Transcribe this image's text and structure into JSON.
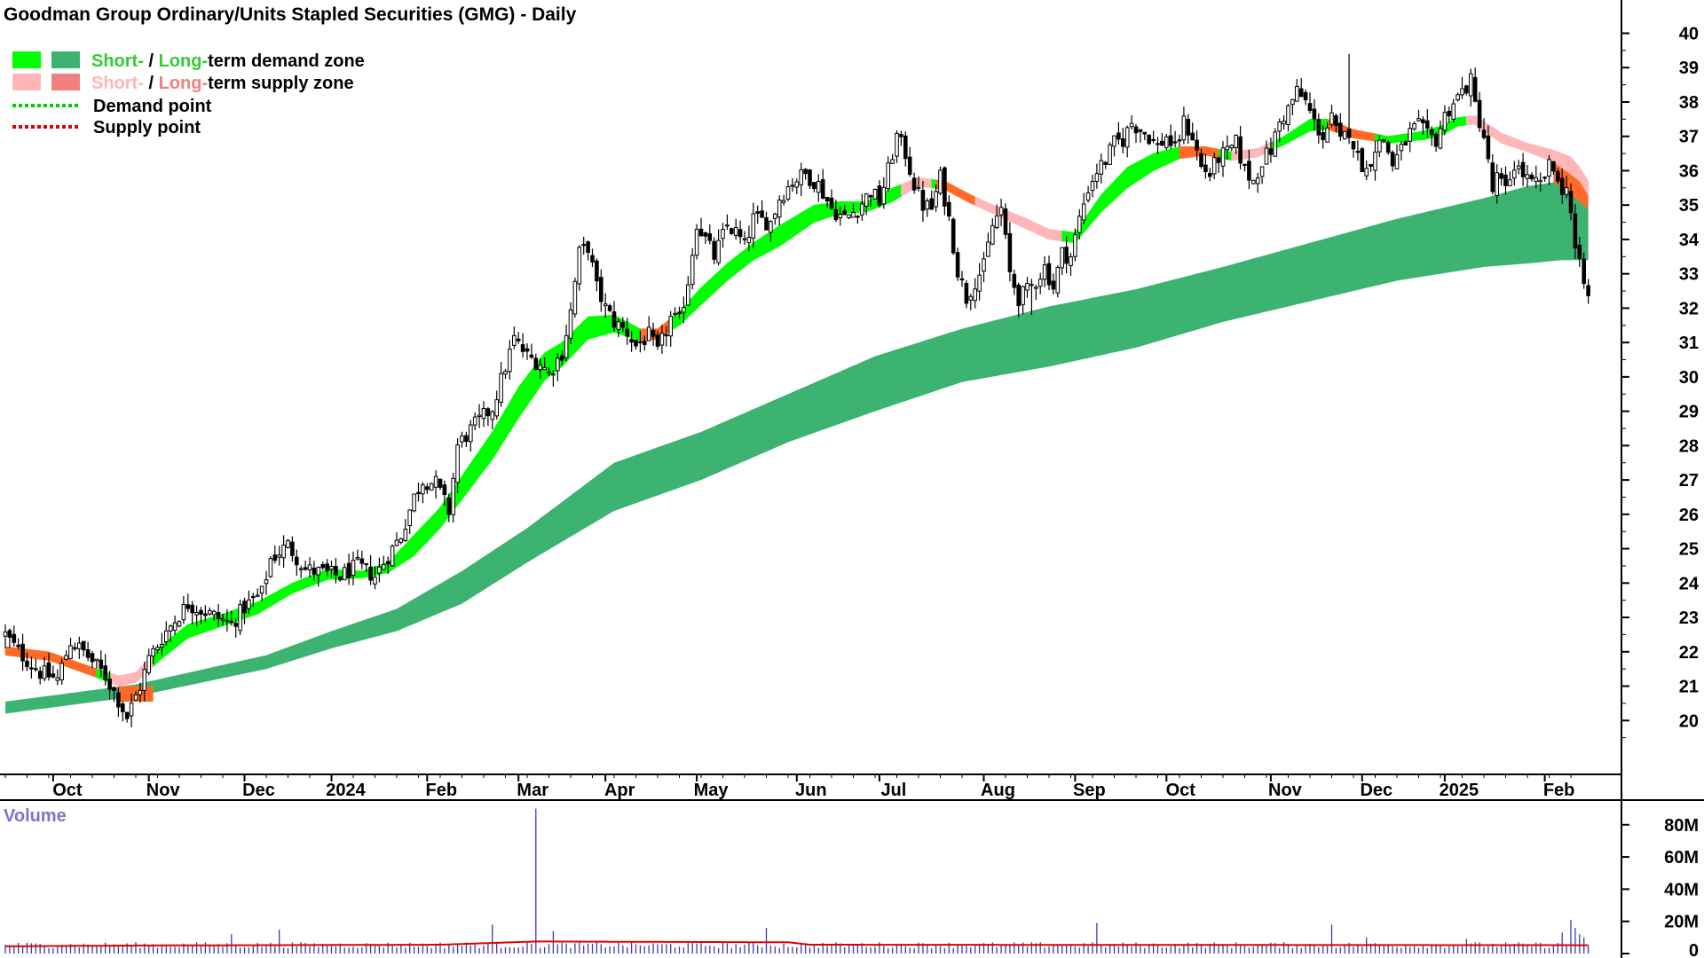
{
  "chart_data": {
    "type": "candlestick",
    "title": "Goodman Group Ordinary/Units Stapled Securities (GMG) - Daily",
    "legend": {
      "demand_zone": {
        "short": "Short-",
        "sep": " / ",
        "long": "Long-",
        "suffix": "term demand zone"
      },
      "supply_zone": {
        "short": "Short-",
        "sep": " / ",
        "long": "Long-",
        "suffix": "term supply zone"
      },
      "demand_point": "Demand point",
      "supply_point": "Supply point"
    },
    "legend_placement": "top-left",
    "price_axis": {
      "ylim": [
        19,
        40.4
      ],
      "ticks": [
        "20",
        "21",
        "22",
        "23",
        "24",
        "25",
        "26",
        "27",
        "28",
        "29",
        "30",
        "31",
        "32",
        "33",
        "34",
        "35",
        "36",
        "37",
        "38",
        "39",
        "40"
      ]
    },
    "x_labels": [
      {
        "label": "Oct",
        "pos": 11
      },
      {
        "label": "Nov",
        "pos": 33
      },
      {
        "label": "Dec",
        "pos": 55
      },
      {
        "label": "2024",
        "pos": 75
      },
      {
        "label": "Feb",
        "pos": 97
      },
      {
        "label": "Mar",
        "pos": 118
      },
      {
        "label": "Apr",
        "pos": 138
      },
      {
        "label": "May",
        "pos": 159
      },
      {
        "label": "Jun",
        "pos": 182
      },
      {
        "label": "Jul",
        "pos": 201
      },
      {
        "label": "Aug",
        "pos": 225
      },
      {
        "label": "Sep",
        "pos": 246
      },
      {
        "label": "Oct",
        "pos": 267
      },
      {
        "label": "Nov",
        "pos": 291
      },
      {
        "label": "Dec",
        "pos": 312
      },
      {
        "label": "2025",
        "pos": 331
      },
      {
        "label": "Feb",
        "pos": 354
      }
    ],
    "close_keys": [
      [
        0,
        22.5
      ],
      [
        3,
        22.0
      ],
      [
        8,
        21.4
      ],
      [
        12,
        21.2
      ],
      [
        15,
        22.3
      ],
      [
        18,
        22.0
      ],
      [
        23,
        21.3
      ],
      [
        26,
        20.6
      ],
      [
        28,
        20.1
      ],
      [
        31,
        21.0
      ],
      [
        33,
        21.8
      ],
      [
        37,
        22.6
      ],
      [
        42,
        23.4
      ],
      [
        47,
        23.1
      ],
      [
        52,
        22.8
      ],
      [
        55,
        23.3
      ],
      [
        59,
        23.7
      ],
      [
        61,
        24.7
      ],
      [
        65,
        25.1
      ],
      [
        69,
        24.4
      ],
      [
        73,
        24.3
      ],
      [
        77,
        24.2
      ],
      [
        81,
        24.5
      ],
      [
        85,
        24.2
      ],
      [
        88,
        24.8
      ],
      [
        91,
        25.4
      ],
      [
        94,
        26.5
      ],
      [
        96,
        27.0
      ],
      [
        99,
        26.9
      ],
      [
        102,
        26.1
      ],
      [
        104,
        28.0
      ],
      [
        108,
        28.6
      ],
      [
        112,
        29.1
      ],
      [
        115,
        30.3
      ],
      [
        117,
        31.1
      ],
      [
        120,
        30.6
      ],
      [
        123,
        30.4
      ],
      [
        125,
        30.1
      ],
      [
        128,
        30.7
      ],
      [
        130,
        31.9
      ],
      [
        132,
        33.6
      ],
      [
        134,
        33.8
      ],
      [
        136,
        32.6
      ],
      [
        138,
        32.0
      ],
      [
        140,
        31.6
      ],
      [
        143,
        31.3
      ],
      [
        145,
        30.9
      ],
      [
        148,
        31.2
      ],
      [
        150,
        30.7
      ],
      [
        153,
        31.7
      ],
      [
        155,
        31.6
      ],
      [
        157,
        32.8
      ],
      [
        159,
        34.5
      ],
      [
        161,
        34.0
      ],
      [
        163,
        33.5
      ],
      [
        166,
        34.4
      ],
      [
        168,
        34.2
      ],
      [
        170,
        33.8
      ],
      [
        172,
        34.6
      ],
      [
        176,
        34.5
      ],
      [
        178,
        35.2
      ],
      [
        181,
        35.7
      ],
      [
        184,
        35.9
      ],
      [
        187,
        35.6
      ],
      [
        190,
        34.9
      ],
      [
        193,
        34.6
      ],
      [
        196,
        34.9
      ],
      [
        199,
        35.4
      ],
      [
        201,
        35.1
      ],
      [
        203,
        36.0
      ],
      [
        205,
        37.0
      ],
      [
        207,
        36.5
      ],
      [
        209,
        35.6
      ],
      [
        211,
        35.0
      ],
      [
        213,
        34.9
      ],
      [
        215,
        35.8
      ],
      [
        217,
        34.6
      ],
      [
        219,
        33.1
      ],
      [
        221,
        32.3
      ],
      [
        223,
        32.8
      ],
      [
        225,
        33.2
      ],
      [
        227,
        34.4
      ],
      [
        229,
        34.9
      ],
      [
        231,
        33.0
      ],
      [
        233,
        32.3
      ],
      [
        235,
        32.5
      ],
      [
        237,
        32.8
      ],
      [
        239,
        33.2
      ],
      [
        241,
        32.6
      ],
      [
        243,
        33.6
      ],
      [
        245,
        33.5
      ],
      [
        247,
        34.6
      ],
      [
        249,
        35.5
      ],
      [
        251,
        36.0
      ],
      [
        253,
        36.3
      ],
      [
        255,
        36.8
      ],
      [
        257,
        36.9
      ],
      [
        259,
        37.4
      ],
      [
        261,
        37.2
      ],
      [
        263,
        37.0
      ],
      [
        265,
        36.7
      ],
      [
        267,
        37.0
      ],
      [
        269,
        36.6
      ],
      [
        271,
        37.4
      ],
      [
        273,
        37.0
      ],
      [
        275,
        36.1
      ],
      [
        277,
        35.9
      ],
      [
        279,
        36.4
      ],
      [
        281,
        36.5
      ],
      [
        283,
        36.8
      ],
      [
        285,
        36.0
      ],
      [
        287,
        35.7
      ],
      [
        289,
        36.3
      ],
      [
        291,
        36.6
      ],
      [
        293,
        37.4
      ],
      [
        295,
        37.8
      ],
      [
        297,
        38.3
      ],
      [
        299,
        38.0
      ],
      [
        301,
        37.4
      ],
      [
        303,
        37.0
      ],
      [
        305,
        37.5
      ],
      [
        307,
        36.8
      ],
      [
        309,
        37.2
      ],
      [
        311,
        36.4
      ],
      [
        313,
        36.0
      ],
      [
        315,
        36.7
      ],
      [
        317,
        36.9
      ],
      [
        319,
        36.2
      ],
      [
        321,
        36.6
      ],
      [
        323,
        37.1
      ],
      [
        325,
        37.3
      ],
      [
        327,
        37.0
      ],
      [
        329,
        36.9
      ],
      [
        331,
        37.6
      ],
      [
        333,
        38.0
      ],
      [
        335,
        38.3
      ],
      [
        337,
        38.6
      ],
      [
        338,
        37.9
      ],
      [
        340,
        37.0
      ],
      [
        342,
        35.4
      ],
      [
        343,
        35.8
      ],
      [
        345,
        35.4
      ],
      [
        347,
        36.2
      ],
      [
        349,
        35.9
      ],
      [
        351,
        35.6
      ],
      [
        353,
        35.6
      ],
      [
        355,
        36.1
      ],
      [
        357,
        35.9
      ],
      [
        358,
        35.2
      ],
      [
        359,
        35.7
      ],
      [
        360,
        34.8
      ],
      [
        361,
        33.7
      ],
      [
        362,
        33.2
      ],
      [
        363,
        32.7
      ],
      [
        364,
        32.3
      ]
    ],
    "candles_count": 365,
    "spikes": [
      {
        "i": 309,
        "high": 39.4
      },
      {
        "i": 221,
        "low": 32.0
      },
      {
        "i": 236,
        "low": 31.8
      },
      {
        "i": 29,
        "low": 19.8
      }
    ],
    "lt_zone_keys": [
      [
        0,
        20.2,
        20.55
      ],
      [
        30,
        20.7,
        21.05
      ],
      [
        60,
        21.5,
        21.9
      ],
      [
        75,
        22.1,
        22.6
      ],
      [
        90,
        22.6,
        23.25
      ],
      [
        105,
        23.4,
        24.35
      ],
      [
        120,
        24.6,
        25.6
      ],
      [
        140,
        26.1,
        27.5
      ],
      [
        160,
        27.0,
        28.4
      ],
      [
        180,
        28.1,
        29.5
      ],
      [
        200,
        29.0,
        30.6
      ],
      [
        220,
        29.85,
        31.4
      ],
      [
        240,
        30.3,
        32.05
      ],
      [
        260,
        30.85,
        32.55
      ],
      [
        280,
        31.6,
        33.2
      ],
      [
        300,
        32.2,
        33.9
      ],
      [
        320,
        32.8,
        34.6
      ],
      [
        340,
        33.2,
        35.2
      ],
      [
        350,
        33.3,
        35.55
      ],
      [
        358,
        33.4,
        35.7
      ],
      [
        364,
        33.4,
        35.7
      ]
    ],
    "st_band_keys": [
      [
        0,
        21.9,
        22.15
      ],
      [
        10,
        21.75,
        22.0
      ],
      [
        20,
        21.3,
        21.55
      ],
      [
        26,
        21.0,
        21.3
      ],
      [
        30,
        21.1,
        21.4
      ],
      [
        36,
        21.8,
        22.2
      ],
      [
        42,
        22.4,
        22.8
      ],
      [
        50,
        22.75,
        23.1
      ],
      [
        58,
        23.1,
        23.45
      ],
      [
        66,
        23.7,
        24.0
      ],
      [
        74,
        24.1,
        24.4
      ],
      [
        82,
        24.15,
        24.35
      ],
      [
        88,
        24.3,
        24.6
      ],
      [
        94,
        24.8,
        25.4
      ],
      [
        100,
        25.6,
        26.2
      ],
      [
        106,
        26.6,
        27.3
      ],
      [
        112,
        27.6,
        28.4
      ],
      [
        118,
        28.8,
        29.7
      ],
      [
        124,
        29.9,
        30.7
      ],
      [
        128,
        30.3,
        31.0
      ],
      [
        134,
        31.1,
        31.75
      ],
      [
        140,
        31.3,
        31.8
      ],
      [
        146,
        31.05,
        31.4
      ],
      [
        150,
        31.1,
        31.4
      ],
      [
        155,
        31.5,
        31.9
      ],
      [
        160,
        32.1,
        32.6
      ],
      [
        166,
        32.8,
        33.3
      ],
      [
        172,
        33.4,
        33.9
      ],
      [
        178,
        33.8,
        34.4
      ],
      [
        186,
        34.5,
        35.0
      ],
      [
        192,
        34.75,
        35.1
      ],
      [
        198,
        34.8,
        35.1
      ],
      [
        204,
        35.1,
        35.5
      ],
      [
        210,
        35.55,
        35.8
      ],
      [
        216,
        35.45,
        35.7
      ],
      [
        222,
        35.05,
        35.3
      ],
      [
        228,
        34.7,
        34.95
      ],
      [
        234,
        34.35,
        34.65
      ],
      [
        240,
        34.0,
        34.3
      ],
      [
        246,
        33.9,
        34.2
      ],
      [
        252,
        34.8,
        35.3
      ],
      [
        258,
        35.5,
        36.1
      ],
      [
        264,
        36.0,
        36.5
      ],
      [
        270,
        36.35,
        36.7
      ],
      [
        276,
        36.45,
        36.7
      ],
      [
        282,
        36.3,
        36.55
      ],
      [
        288,
        36.4,
        36.65
      ],
      [
        294,
        36.75,
        37.0
      ],
      [
        300,
        37.15,
        37.5
      ],
      [
        304,
        37.2,
        37.5
      ],
      [
        310,
        36.95,
        37.2
      ],
      [
        318,
        36.8,
        37.0
      ],
      [
        326,
        36.9,
        37.15
      ],
      [
        330,
        37.0,
        37.3
      ],
      [
        334,
        37.3,
        37.55
      ],
      [
        338,
        37.35,
        37.6
      ],
      [
        344,
        36.8,
        37.1
      ],
      [
        350,
        36.55,
        36.8
      ],
      [
        356,
        36.25,
        36.6
      ],
      [
        360,
        35.9,
        36.4
      ],
      [
        362,
        35.7,
        36.1
      ],
      [
        364,
        35.3,
        35.7
      ]
    ],
    "st_supply_ranges": [
      [
        0,
        9
      ],
      [
        10,
        20
      ],
      [
        24,
        32
      ],
      [
        146,
        152
      ],
      [
        206,
        212
      ],
      [
        214,
        222
      ],
      [
        222,
        242
      ],
      [
        270,
        278
      ],
      [
        282,
        290
      ],
      [
        304,
        314
      ],
      [
        336,
        364
      ]
    ],
    "st_supply_dark_ranges": [
      [
        0,
        9
      ],
      [
        10,
        20
      ],
      [
        146,
        152
      ],
      [
        214,
        222
      ],
      [
        270,
        278
      ],
      [
        304,
        314
      ]
    ],
    "lt_supply_ranges": [
      [
        26,
        34
      ],
      [
        356,
        364
      ]
    ],
    "volume": {
      "title": "Volume",
      "ylim": [
        0,
        92
      ],
      "ticks": [
        "80M",
        "60M",
        "40M",
        "20M",
        "0"
      ],
      "spikes": [
        {
          "i": 122,
          "value": 90
        },
        {
          "i": 112,
          "value": 18
        },
        {
          "i": 52,
          "value": 12
        },
        {
          "i": 63,
          "value": 15
        },
        {
          "i": 126,
          "value": 14
        },
        {
          "i": 175,
          "value": 16
        },
        {
          "i": 251,
          "value": 19
        },
        {
          "i": 305,
          "value": 18
        },
        {
          "i": 313,
          "value": 10
        },
        {
          "i": 336,
          "value": 9
        },
        {
          "i": 358,
          "value": 13
        },
        {
          "i": 360,
          "value": 21
        },
        {
          "i": 361,
          "value": 16
        },
        {
          "i": 362,
          "value": 12
        },
        {
          "i": 363,
          "value": 10
        }
      ],
      "base_level": 5.5,
      "avg_keys": [
        [
          0,
          4.5
        ],
        [
          30,
          5.0
        ],
        [
          100,
          5.5
        ],
        [
          122,
          7.5
        ],
        [
          180,
          7.0
        ],
        [
          185,
          5.5
        ],
        [
          364,
          5.2
        ]
      ]
    }
  },
  "colors": {
    "st_demand": "#00ff00",
    "lt_demand": "#3cb371",
    "st_supply": "#ffb6b9",
    "st_supply_dark": "#ff6a28",
    "lt_supply": "#ff6a28",
    "lt_supply_legend": "#f08080",
    "demand_text": "#33cc33",
    "supply_text": "#ffb6b9",
    "supply_text_long": "#f08080",
    "demand_point": "#00d000",
    "supply_point": "#e00000",
    "volume_bar": "#3b3bb0",
    "volume_avg": "#e00000",
    "volume_label": "#7878c8"
  }
}
